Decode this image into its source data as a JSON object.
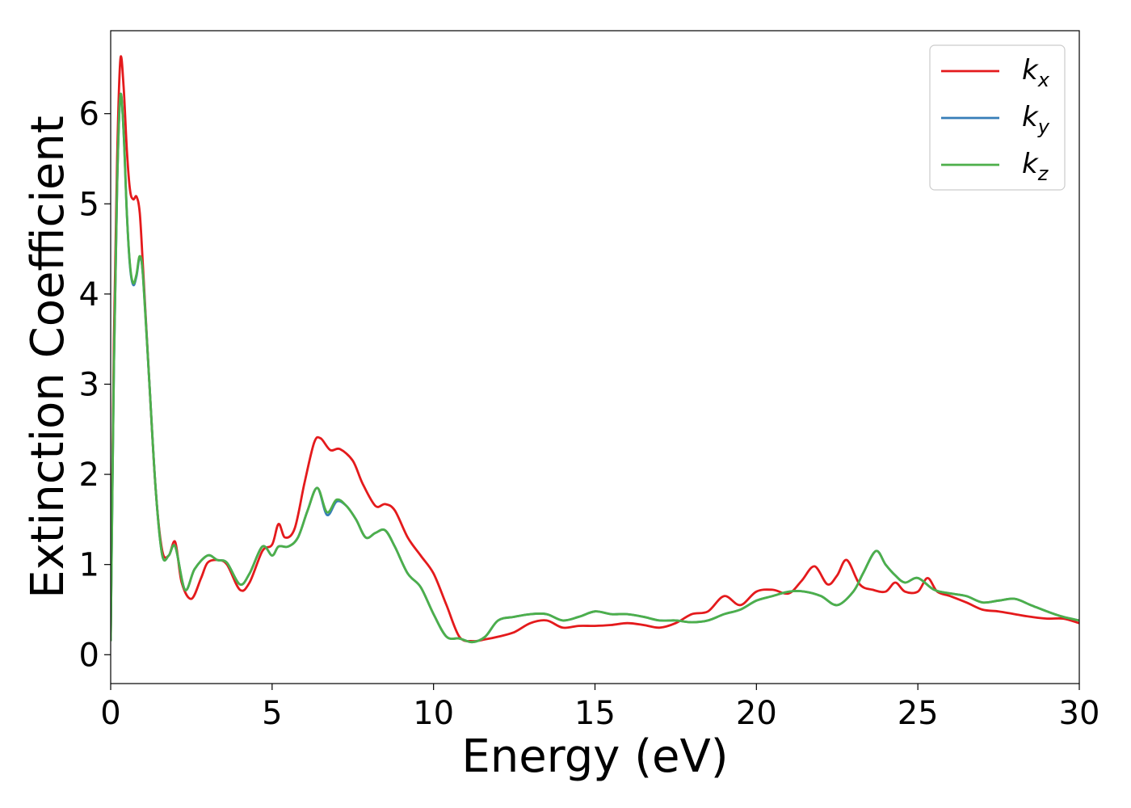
{
  "chart_data": {
    "type": "line",
    "xlabel": "Energy (eV)",
    "ylabel": "Extinction Coefficient",
    "xlim": [
      0,
      30
    ],
    "ylim": [
      -0.32,
      6.92
    ],
    "xticks": [
      0,
      5,
      10,
      15,
      20,
      25,
      30
    ],
    "yticks": [
      0,
      1,
      2,
      3,
      4,
      5,
      6
    ],
    "grid": false,
    "legend_position": "top-right",
    "series": [
      {
        "name": "k",
        "subscript": "x",
        "color": "#e41a1c",
        "x": [
          0,
          0.1,
          0.2,
          0.3,
          0.4,
          0.5,
          0.6,
          0.7,
          0.8,
          0.9,
          1.0,
          1.2,
          1.4,
          1.6,
          1.8,
          2.0,
          2.2,
          2.5,
          2.8,
          3.0,
          3.3,
          3.6,
          4.0,
          4.3,
          4.7,
          5.0,
          5.2,
          5.4,
          5.7,
          6.0,
          6.3,
          6.5,
          6.8,
          7.1,
          7.5,
          7.8,
          8.2,
          8.5,
          8.8,
          9.2,
          9.6,
          10.0,
          10.4,
          10.8,
          11.2,
          11.6,
          12.0,
          12.5,
          13.0,
          13.5,
          14.0,
          14.5,
          15.0,
          15.5,
          16.0,
          16.5,
          17.0,
          17.5,
          18.0,
          18.5,
          19.0,
          19.5,
          20.0,
          20.5,
          21.0,
          21.4,
          21.8,
          22.2,
          22.5,
          22.8,
          23.2,
          23.6,
          24.0,
          24.3,
          24.6,
          25.0,
          25.3,
          25.6,
          26.0,
          26.5,
          27.0,
          27.5,
          28.0,
          28.5,
          29.0,
          29.5,
          30.0
        ],
        "y": [
          0.15,
          3.5,
          5.5,
          6.6,
          6.3,
          5.6,
          5.15,
          5.05,
          5.08,
          4.9,
          4.3,
          3.0,
          1.8,
          1.15,
          1.1,
          1.25,
          0.8,
          0.62,
          0.85,
          1.02,
          1.05,
          1.0,
          0.72,
          0.8,
          1.15,
          1.22,
          1.45,
          1.3,
          1.4,
          1.9,
          2.35,
          2.4,
          2.27,
          2.28,
          2.15,
          1.9,
          1.65,
          1.67,
          1.6,
          1.3,
          1.1,
          0.9,
          0.55,
          0.2,
          0.15,
          0.17,
          0.2,
          0.25,
          0.35,
          0.38,
          0.3,
          0.32,
          0.32,
          0.33,
          0.35,
          0.33,
          0.3,
          0.35,
          0.45,
          0.48,
          0.65,
          0.55,
          0.7,
          0.72,
          0.68,
          0.82,
          0.98,
          0.78,
          0.88,
          1.05,
          0.78,
          0.72,
          0.7,
          0.8,
          0.7,
          0.7,
          0.85,
          0.7,
          0.65,
          0.58,
          0.5,
          0.48,
          0.45,
          0.42,
          0.4,
          0.4,
          0.35
        ]
      },
      {
        "name": "k",
        "subscript": "y",
        "color": "#377eb8",
        "x": [
          0,
          0.1,
          0.2,
          0.3,
          0.4,
          0.5,
          0.6,
          0.7,
          0.8,
          0.9,
          1.0,
          1.2,
          1.4,
          1.6,
          1.8,
          2.0,
          2.3,
          2.6,
          3.0,
          3.3,
          3.6,
          4.0,
          4.3,
          4.7,
          5.0,
          5.2,
          5.5,
          5.8,
          6.1,
          6.4,
          6.7,
          7.0,
          7.3,
          7.6,
          7.9,
          8.2,
          8.5,
          8.8,
          9.2,
          9.6,
          10.0,
          10.4,
          10.8,
          11.2,
          11.6,
          12.0,
          12.5,
          13.0,
          13.5,
          14.0,
          14.5,
          15.0,
          15.5,
          16.0,
          16.5,
          17.0,
          17.5,
          18.0,
          18.5,
          19.0,
          19.5,
          20.0,
          20.5,
          21.0,
          21.5,
          22.0,
          22.5,
          23.0,
          23.3,
          23.7,
          24.0,
          24.3,
          24.6,
          25.0,
          25.5,
          26.0,
          26.5,
          27.0,
          27.5,
          28.0,
          28.5,
          29.0,
          29.5,
          30.0
        ],
        "y": [
          0.15,
          3.2,
          5.2,
          6.2,
          5.8,
          4.9,
          4.3,
          4.1,
          4.2,
          4.4,
          4.2,
          3.0,
          1.8,
          1.1,
          1.1,
          1.2,
          0.72,
          0.95,
          1.1,
          1.05,
          1.02,
          0.78,
          0.9,
          1.2,
          1.1,
          1.2,
          1.2,
          1.3,
          1.6,
          1.85,
          1.55,
          1.7,
          1.65,
          1.5,
          1.3,
          1.35,
          1.38,
          1.2,
          0.9,
          0.75,
          0.45,
          0.2,
          0.18,
          0.14,
          0.2,
          0.38,
          0.42,
          0.45,
          0.45,
          0.38,
          0.42,
          0.48,
          0.45,
          0.45,
          0.42,
          0.38,
          0.38,
          0.36,
          0.38,
          0.45,
          0.5,
          0.6,
          0.65,
          0.7,
          0.7,
          0.65,
          0.55,
          0.7,
          0.9,
          1.15,
          1.0,
          0.88,
          0.8,
          0.85,
          0.72,
          0.68,
          0.65,
          0.58,
          0.6,
          0.62,
          0.55,
          0.48,
          0.42,
          0.38
        ]
      },
      {
        "name": "k",
        "subscript": "z",
        "color": "#4daf4a",
        "x": [
          0,
          0.1,
          0.2,
          0.3,
          0.4,
          0.5,
          0.6,
          0.7,
          0.8,
          0.9,
          1.0,
          1.2,
          1.4,
          1.6,
          1.8,
          2.0,
          2.3,
          2.6,
          3.0,
          3.3,
          3.6,
          4.0,
          4.3,
          4.7,
          5.0,
          5.2,
          5.5,
          5.8,
          6.1,
          6.4,
          6.7,
          7.0,
          7.3,
          7.6,
          7.9,
          8.2,
          8.5,
          8.8,
          9.2,
          9.6,
          10.0,
          10.4,
          10.8,
          11.2,
          11.6,
          12.0,
          12.5,
          13.0,
          13.5,
          14.0,
          14.5,
          15.0,
          15.5,
          16.0,
          16.5,
          17.0,
          17.5,
          18.0,
          18.5,
          19.0,
          19.5,
          20.0,
          20.5,
          21.0,
          21.5,
          22.0,
          22.5,
          23.0,
          23.3,
          23.7,
          24.0,
          24.3,
          24.6,
          25.0,
          25.5,
          26.0,
          26.5,
          27.0,
          27.5,
          28.0,
          28.5,
          29.0,
          29.5,
          30.0
        ],
        "y": [
          0.15,
          3.2,
          5.2,
          6.2,
          5.8,
          4.9,
          4.32,
          4.12,
          4.22,
          4.42,
          4.2,
          3.0,
          1.8,
          1.1,
          1.1,
          1.2,
          0.72,
          0.95,
          1.1,
          1.05,
          1.02,
          0.78,
          0.9,
          1.2,
          1.1,
          1.2,
          1.2,
          1.3,
          1.6,
          1.85,
          1.58,
          1.72,
          1.65,
          1.5,
          1.3,
          1.35,
          1.38,
          1.2,
          0.9,
          0.75,
          0.45,
          0.2,
          0.18,
          0.14,
          0.2,
          0.38,
          0.42,
          0.45,
          0.45,
          0.38,
          0.42,
          0.48,
          0.45,
          0.45,
          0.42,
          0.38,
          0.38,
          0.36,
          0.38,
          0.45,
          0.5,
          0.6,
          0.65,
          0.7,
          0.7,
          0.65,
          0.55,
          0.7,
          0.9,
          1.15,
          1.0,
          0.88,
          0.8,
          0.85,
          0.72,
          0.68,
          0.65,
          0.58,
          0.6,
          0.62,
          0.55,
          0.48,
          0.42,
          0.38
        ]
      }
    ]
  }
}
